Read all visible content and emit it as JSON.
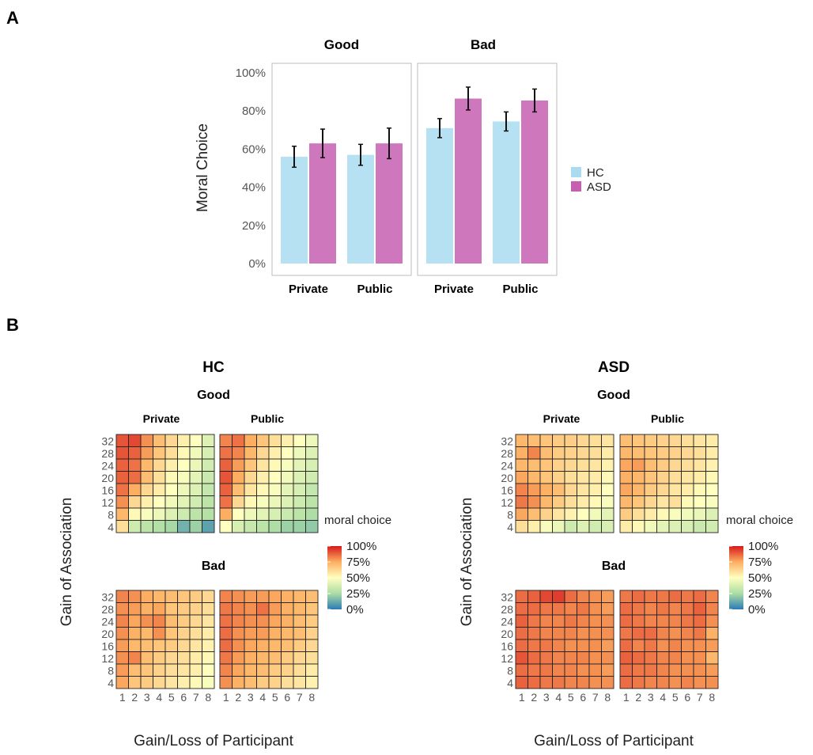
{
  "chart_data": [
    {
      "type": "bar",
      "panel": "A",
      "ylabel": "Moral Choice",
      "yticks": [
        "0%",
        "20%",
        "40%",
        "60%",
        "80%",
        "100%"
      ],
      "ylim": [
        0,
        100
      ],
      "legend": {
        "position": "right",
        "items": [
          {
            "name": "HC",
            "color": "#a9dcf0"
          },
          {
            "name": "ASD",
            "color": "#c65fb2"
          }
        ]
      },
      "facets": [
        {
          "title": "Good",
          "categories": [
            "Private",
            "Public"
          ],
          "series": [
            {
              "name": "HC",
              "values": [
                56,
                57
              ],
              "err": [
                5.5,
                5.5
              ]
            },
            {
              "name": "ASD",
              "values": [
                63,
                63
              ],
              "err": [
                7.5,
                8
              ]
            }
          ]
        },
        {
          "title": "Bad",
          "categories": [
            "Private",
            "Public"
          ],
          "series": [
            {
              "name": "HC",
              "values": [
                71,
                74.5
              ],
              "err": [
                5,
                5
              ]
            },
            {
              "name": "ASD",
              "values": [
                86.5,
                85.5
              ],
              "err": [
                6,
                6
              ]
            }
          ]
        }
      ]
    },
    {
      "type": "heatmap",
      "panel": "B",
      "xlabel": "Gain/Loss of Participant",
      "ylabel": "Gain of Association",
      "xticks": [
        "1",
        "2",
        "3",
        "4",
        "5",
        "6",
        "7",
        "8"
      ],
      "yticks": [
        "32",
        "28",
        "24",
        "20",
        "16",
        "12",
        "8",
        "4"
      ],
      "legend": {
        "title": "moral choice",
        "ticks": [
          "100%",
          "75%",
          "50%",
          "25%",
          "0%"
        ]
      },
      "groups": [
        {
          "title": "HC",
          "good": {
            "title": "Good",
            "private": {
              "title": "Private",
              "values": [
                [
                  0.9,
                  0.92,
                  0.8,
                  0.7,
                  0.62,
                  0.55,
                  0.5,
                  0.4
                ],
                [
                  0.9,
                  0.88,
                  0.78,
                  0.68,
                  0.6,
                  0.52,
                  0.46,
                  0.38
                ],
                [
                  0.88,
                  0.85,
                  0.72,
                  0.62,
                  0.55,
                  0.5,
                  0.44,
                  0.36
                ],
                [
                  0.88,
                  0.86,
                  0.7,
                  0.6,
                  0.52,
                  0.48,
                  0.42,
                  0.34
                ],
                [
                  0.85,
                  0.75,
                  0.62,
                  0.56,
                  0.5,
                  0.45,
                  0.4,
                  0.32
                ],
                [
                  0.8,
                  0.62,
                  0.55,
                  0.5,
                  0.46,
                  0.42,
                  0.36,
                  0.3
                ],
                [
                  0.72,
                  0.52,
                  0.48,
                  0.45,
                  0.4,
                  0.35,
                  0.3,
                  0.28
                ],
                [
                  0.6,
                  0.35,
                  0.3,
                  0.27,
                  0.24,
                  0.14,
                  0.22,
                  0.1
                ]
              ]
            },
            "public": {
              "title": "Public",
              "values": [
                [
                  0.82,
                  0.85,
                  0.75,
                  0.68,
                  0.6,
                  0.55,
                  0.5,
                  0.45
                ],
                [
                  0.85,
                  0.82,
                  0.72,
                  0.62,
                  0.55,
                  0.5,
                  0.45,
                  0.4
                ],
                [
                  0.88,
                  0.78,
                  0.68,
                  0.58,
                  0.52,
                  0.48,
                  0.42,
                  0.38
                ],
                [
                  0.9,
                  0.75,
                  0.62,
                  0.55,
                  0.5,
                  0.46,
                  0.4,
                  0.36
                ],
                [
                  0.88,
                  0.7,
                  0.58,
                  0.52,
                  0.48,
                  0.42,
                  0.38,
                  0.32
                ],
                [
                  0.85,
                  0.62,
                  0.52,
                  0.48,
                  0.44,
                  0.4,
                  0.35,
                  0.3
                ],
                [
                  0.75,
                  0.5,
                  0.45,
                  0.42,
                  0.38,
                  0.34,
                  0.3,
                  0.26
                ],
                [
                  0.5,
                  0.38,
                  0.33,
                  0.3,
                  0.26,
                  0.22,
                  0.22,
                  0.2
                ]
              ]
            }
          },
          "bad": {
            "title": "Bad",
            "private": {
              "title": "Private",
              "values": [
                [
                  0.82,
                  0.8,
                  0.75,
                  0.72,
                  0.7,
                  0.68,
                  0.66,
                  0.62
                ],
                [
                  0.8,
                  0.78,
                  0.74,
                  0.76,
                  0.68,
                  0.66,
                  0.64,
                  0.6
                ],
                [
                  0.82,
                  0.76,
                  0.8,
                  0.82,
                  0.7,
                  0.66,
                  0.62,
                  0.58
                ],
                [
                  0.8,
                  0.74,
                  0.72,
                  0.8,
                  0.68,
                  0.64,
                  0.6,
                  0.56
                ],
                [
                  0.78,
                  0.72,
                  0.7,
                  0.68,
                  0.66,
                  0.62,
                  0.58,
                  0.54
                ],
                [
                  0.8,
                  0.82,
                  0.7,
                  0.66,
                  0.62,
                  0.6,
                  0.56,
                  0.52
                ],
                [
                  0.78,
                  0.7,
                  0.68,
                  0.64,
                  0.6,
                  0.58,
                  0.55,
                  0.5
                ],
                [
                  0.76,
                  0.68,
                  0.66,
                  0.62,
                  0.58,
                  0.55,
                  0.52,
                  0.48
                ]
              ]
            },
            "public": {
              "title": "Public",
              "values": [
                [
                  0.82,
                  0.8,
                  0.78,
                  0.78,
                  0.76,
                  0.74,
                  0.72,
                  0.7
                ],
                [
                  0.84,
                  0.82,
                  0.8,
                  0.85,
                  0.78,
                  0.74,
                  0.72,
                  0.68
                ],
                [
                  0.85,
                  0.82,
                  0.8,
                  0.8,
                  0.76,
                  0.74,
                  0.7,
                  0.66
                ],
                [
                  0.86,
                  0.8,
                  0.78,
                  0.78,
                  0.74,
                  0.72,
                  0.7,
                  0.64
                ],
                [
                  0.86,
                  0.8,
                  0.76,
                  0.74,
                  0.72,
                  0.7,
                  0.66,
                  0.62
                ],
                [
                  0.84,
                  0.78,
                  0.74,
                  0.72,
                  0.7,
                  0.66,
                  0.62,
                  0.6
                ],
                [
                  0.82,
                  0.76,
                  0.72,
                  0.7,
                  0.66,
                  0.64,
                  0.6,
                  0.56
                ],
                [
                  0.8,
                  0.74,
                  0.7,
                  0.66,
                  0.64,
                  0.6,
                  0.58,
                  0.54
                ]
              ]
            }
          }
        },
        {
          "title": "ASD",
          "good": {
            "title": "Good",
            "private": {
              "title": "Private",
              "values": [
                [
                  0.72,
                  0.7,
                  0.68,
                  0.66,
                  0.65,
                  0.62,
                  0.6,
                  0.58
                ],
                [
                  0.74,
                  0.82,
                  0.7,
                  0.66,
                  0.64,
                  0.62,
                  0.6,
                  0.56
                ],
                [
                  0.72,
                  0.7,
                  0.68,
                  0.64,
                  0.62,
                  0.6,
                  0.58,
                  0.54
                ],
                [
                  0.76,
                  0.72,
                  0.68,
                  0.64,
                  0.6,
                  0.58,
                  0.56,
                  0.52
                ],
                [
                  0.82,
                  0.78,
                  0.74,
                  0.7,
                  0.62,
                  0.58,
                  0.55,
                  0.5
                ],
                [
                  0.84,
                  0.8,
                  0.72,
                  0.66,
                  0.6,
                  0.56,
                  0.52,
                  0.48
                ],
                [
                  0.76,
                  0.7,
                  0.64,
                  0.58,
                  0.54,
                  0.5,
                  0.46,
                  0.42
                ],
                [
                  0.6,
                  0.55,
                  0.48,
                  0.44,
                  0.35,
                  0.4,
                  0.36,
                  0.38
                ]
              ]
            },
            "public": {
              "title": "Public",
              "values": [
                [
                  0.7,
                  0.68,
                  0.66,
                  0.64,
                  0.62,
                  0.6,
                  0.58,
                  0.56
                ],
                [
                  0.72,
                  0.7,
                  0.68,
                  0.66,
                  0.64,
                  0.62,
                  0.6,
                  0.56
                ],
                [
                  0.76,
                  0.78,
                  0.7,
                  0.66,
                  0.62,
                  0.6,
                  0.58,
                  0.54
                ],
                [
                  0.74,
                  0.72,
                  0.68,
                  0.64,
                  0.6,
                  0.58,
                  0.56,
                  0.52
                ],
                [
                  0.76,
                  0.72,
                  0.66,
                  0.62,
                  0.58,
                  0.56,
                  0.52,
                  0.5
                ],
                [
                  0.72,
                  0.68,
                  0.62,
                  0.58,
                  0.6,
                  0.52,
                  0.5,
                  0.48
                ],
                [
                  0.66,
                  0.6,
                  0.56,
                  0.52,
                  0.48,
                  0.46,
                  0.44,
                  0.4
                ],
                [
                  0.56,
                  0.52,
                  0.46,
                  0.42,
                  0.4,
                  0.38,
                  0.34,
                  0.36
                ]
              ]
            }
          },
          "bad": {
            "title": "Bad",
            "private": {
              "title": "Private",
              "values": [
                [
                  0.86,
                  0.88,
                  0.92,
                  0.94,
                  0.86,
                  0.82,
                  0.8,
                  0.78
                ],
                [
                  0.86,
                  0.86,
                  0.84,
                  0.84,
                  0.82,
                  0.84,
                  0.8,
                  0.78
                ],
                [
                  0.88,
                  0.84,
                  0.82,
                  0.82,
                  0.84,
                  0.82,
                  0.8,
                  0.8
                ],
                [
                  0.86,
                  0.84,
                  0.82,
                  0.82,
                  0.82,
                  0.8,
                  0.8,
                  0.8
                ],
                [
                  0.86,
                  0.84,
                  0.84,
                  0.82,
                  0.8,
                  0.8,
                  0.8,
                  0.78
                ],
                [
                  0.9,
                  0.86,
                  0.84,
                  0.82,
                  0.82,
                  0.82,
                  0.8,
                  0.8
                ],
                [
                  0.86,
                  0.84,
                  0.84,
                  0.82,
                  0.82,
                  0.8,
                  0.8,
                  0.78
                ],
                [
                  0.88,
                  0.86,
                  0.84,
                  0.84,
                  0.82,
                  0.82,
                  0.8,
                  0.8
                ]
              ]
            },
            "public": {
              "title": "Public",
              "values": [
                [
                  0.84,
                  0.86,
                  0.84,
                  0.84,
                  0.86,
                  0.84,
                  0.86,
                  0.82
                ],
                [
                  0.86,
                  0.84,
                  0.82,
                  0.84,
                  0.82,
                  0.84,
                  0.88,
                  0.82
                ],
                [
                  0.86,
                  0.84,
                  0.82,
                  0.82,
                  0.82,
                  0.84,
                  0.86,
                  0.8
                ],
                [
                  0.84,
                  0.86,
                  0.86,
                  0.82,
                  0.8,
                  0.82,
                  0.84,
                  0.74
                ],
                [
                  0.86,
                  0.82,
                  0.84,
                  0.8,
                  0.82,
                  0.8,
                  0.8,
                  0.78
                ],
                [
                  0.88,
                  0.86,
                  0.84,
                  0.82,
                  0.82,
                  0.8,
                  0.8,
                  0.72
                ],
                [
                  0.86,
                  0.84,
                  0.84,
                  0.82,
                  0.8,
                  0.8,
                  0.8,
                  0.78
                ],
                [
                  0.86,
                  0.84,
                  0.82,
                  0.82,
                  0.8,
                  0.82,
                  0.8,
                  0.8
                ]
              ]
            }
          }
        }
      ]
    }
  ],
  "labels": {
    "panelA": "A",
    "panelB": "B"
  },
  "colors": {
    "hc": "#a9dcf0",
    "asd": "#c65fb2",
    "colorscale": [
      "#2c7bb6",
      "#abdda4",
      "#ffffbf",
      "#fdae61",
      "#d7191c"
    ]
  }
}
